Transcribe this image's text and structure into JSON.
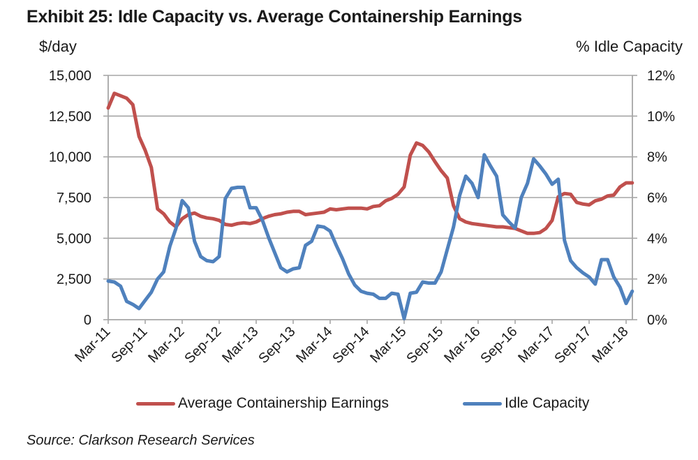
{
  "header": {
    "title": "Exhibit 25: Idle Capacity vs. Average Containership Earnings",
    "left_axis_title": "$/day",
    "right_axis_title": "% Idle Capacity"
  },
  "footer": {
    "source": "Source: Clarkson Research Services"
  },
  "colors": {
    "earnings": "#C0504D",
    "idle": "#4F81BD",
    "grid": "#a6a6a6",
    "axis": "#a6a6a6"
  },
  "chart_data": {
    "type": "line",
    "title": "Exhibit 25: Idle Capacity vs. Average Containership Earnings",
    "xlabel": "",
    "ylabel": "$/day",
    "y2label": "% Idle Capacity",
    "ylim": [
      0,
      15000
    ],
    "y2lim": [
      0,
      12
    ],
    "yticks": [
      "0",
      "2,500",
      "5,000",
      "7,500",
      "10,000",
      "12,500",
      "15,000"
    ],
    "ytick_values": [
      0,
      2500,
      5000,
      7500,
      10000,
      12500,
      15000
    ],
    "y2ticks": [
      "0%",
      "2%",
      "4%",
      "6%",
      "8%",
      "10%",
      "12%"
    ],
    "y2tick_values": [
      0,
      2,
      4,
      6,
      8,
      10,
      12
    ],
    "xtick_labels": [
      "Mar-11",
      "Sep-11",
      "Mar-12",
      "Sep-12",
      "Mar-13",
      "Sep-13",
      "Mar-14",
      "Sep-14",
      "Mar-15",
      "Sep-15",
      "Mar-16",
      "Sep-16",
      "Mar-17",
      "Sep-17",
      "Mar-18"
    ],
    "xtick_month_index": [
      0,
      6,
      12,
      18,
      24,
      30,
      36,
      42,
      48,
      54,
      60,
      66,
      72,
      78,
      84
    ],
    "x_start": "Mar-11",
    "x_unit": "month",
    "grid": true,
    "legend_position": "bottom",
    "series": [
      {
        "name": "Average Containership Earnings",
        "axis": "left",
        "color": "#C0504D",
        "values": [
          13000,
          13900,
          13750,
          13600,
          13200,
          11250,
          10400,
          9350,
          6800,
          6500,
          6000,
          5700,
          6200,
          6450,
          6550,
          6350,
          6250,
          6200,
          6100,
          5850,
          5800,
          5900,
          5950,
          5900,
          6000,
          6200,
          6350,
          6450,
          6500,
          6600,
          6650,
          6650,
          6450,
          6500,
          6550,
          6600,
          6800,
          6750,
          6800,
          6850,
          6850,
          6850,
          6800,
          6950,
          7000,
          7300,
          7450,
          7700,
          8150,
          10100,
          10850,
          10700,
          10300,
          9700,
          9150,
          8700,
          7000,
          6200,
          6000,
          5900,
          5850,
          5800,
          5750,
          5700,
          5700,
          5650,
          5600,
          5450,
          5300,
          5300,
          5350,
          5600,
          6100,
          7550,
          7750,
          7700,
          7200,
          7100,
          7050,
          7300,
          7400,
          7600,
          7650,
          8150,
          8400,
          8400
        ]
      },
      {
        "name": "Idle Capacity",
        "axis": "right",
        "color": "#4F81BD",
        "values": [
          1.9,
          1.85,
          1.65,
          0.9,
          0.75,
          0.55,
          0.95,
          1.35,
          2.0,
          2.35,
          3.6,
          4.5,
          5.85,
          5.5,
          3.85,
          3.1,
          2.9,
          2.85,
          3.1,
          5.95,
          6.45,
          6.5,
          6.5,
          5.5,
          5.5,
          4.9,
          4.05,
          3.3,
          2.55,
          2.35,
          2.5,
          2.55,
          3.65,
          3.85,
          4.6,
          4.55,
          4.35,
          3.65,
          3.0,
          2.25,
          1.7,
          1.4,
          1.3,
          1.25,
          1.05,
          1.05,
          1.3,
          1.25,
          0.05,
          1.3,
          1.35,
          1.85,
          1.8,
          1.8,
          2.35,
          3.45,
          4.55,
          6.1,
          7.05,
          6.7,
          6.0,
          8.1,
          7.55,
          7.05,
          5.15,
          4.8,
          4.5,
          6.0,
          6.7,
          7.9,
          7.55,
          7.15,
          6.65,
          6.9,
          3.9,
          2.9,
          2.55,
          2.3,
          2.1,
          1.75,
          2.95,
          2.95,
          2.1,
          1.6,
          0.8,
          1.4
        ]
      }
    ]
  }
}
